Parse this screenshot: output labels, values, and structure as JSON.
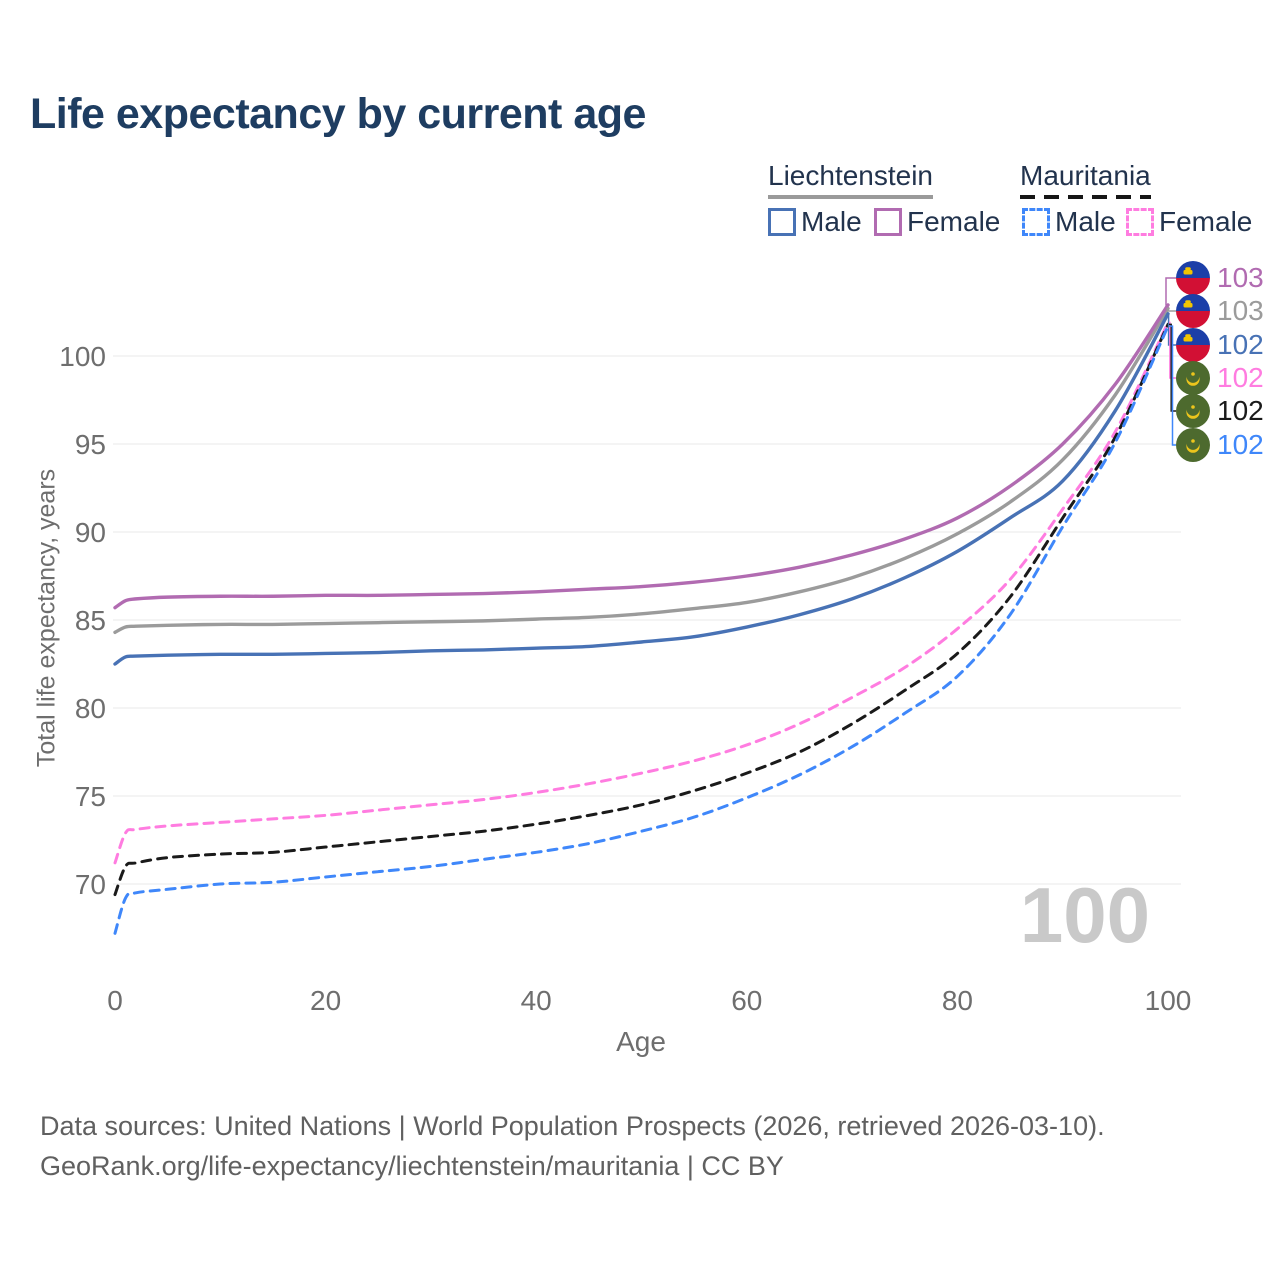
{
  "page": {
    "title": "Life expectancy by current age",
    "watermark": "100"
  },
  "legend": {
    "groups": [
      {
        "label": "Liechtenstein",
        "line_style": "solid",
        "items": [
          {
            "label": "Male",
            "color": "#4872b5",
            "dashed": false
          },
          {
            "label": "Female",
            "color": "#b16bb1",
            "dashed": false
          }
        ]
      },
      {
        "label": "Mauritania",
        "line_style": "dashed",
        "items": [
          {
            "label": "Male",
            "color": "#3f87fa",
            "dashed": true
          },
          {
            "label": "Female",
            "color": "#ff7ce0",
            "dashed": true
          }
        ]
      }
    ]
  },
  "annotations": [
    {
      "flag": "liechtenstein",
      "value": "103",
      "color": "#b16bb1"
    },
    {
      "flag": "liechtenstein",
      "value": "103",
      "color": "#9b9b9b"
    },
    {
      "flag": "liechtenstein",
      "value": "102",
      "color": "#4872b5"
    },
    {
      "flag": "mauritania",
      "value": "102",
      "color": "#ff7ce0"
    },
    {
      "flag": "mauritania",
      "value": "102",
      "color": "#1a1a1a"
    },
    {
      "flag": "mauritania",
      "value": "102",
      "color": "#3f87fa"
    }
  ],
  "footer": {
    "line1": "Data sources: United Nations | World Population Prospects (2026, retrieved 2026-03-10).",
    "line2": "GeoRank.org/life-expectancy/liechtenstein/mauritania | CC BY"
  },
  "chart_data": {
    "type": "line",
    "title": "Life expectancy by current age",
    "xlabel": "Age",
    "ylabel": "Total life expectancy, years",
    "xticks": [
      0,
      20,
      40,
      60,
      80,
      100
    ],
    "yticks": [
      70,
      75,
      80,
      85,
      90,
      95,
      100
    ],
    "xlim": [
      0,
      100
    ],
    "ylim": [
      66,
      104
    ],
    "grid": true,
    "legend_position": "top-right",
    "ages": [
      0,
      1,
      2,
      5,
      10,
      15,
      20,
      25,
      30,
      35,
      40,
      45,
      50,
      55,
      60,
      65,
      70,
      75,
      80,
      85,
      90,
      95,
      100
    ],
    "series": [
      {
        "name": "Liechtenstein Female",
        "color": "#b16bb1",
        "dashed": false,
        "values": [
          85.7,
          86.1,
          86.2,
          86.3,
          86.35,
          86.35,
          86.4,
          86.4,
          86.45,
          86.5,
          86.6,
          86.75,
          86.9,
          87.15,
          87.5,
          88.0,
          88.7,
          89.6,
          90.8,
          92.6,
          95.0,
          98.4,
          102.9
        ]
      },
      {
        "name": "Liechtenstein Both sexes",
        "color": "#9b9b9b",
        "dashed": false,
        "values": [
          84.3,
          84.6,
          84.65,
          84.7,
          84.75,
          84.75,
          84.8,
          84.85,
          84.9,
          84.95,
          85.05,
          85.15,
          85.35,
          85.65,
          86.0,
          86.6,
          87.4,
          88.5,
          89.9,
          91.7,
          94.1,
          97.8,
          102.7
        ]
      },
      {
        "name": "Liechtenstein Male",
        "color": "#4872b5",
        "dashed": false,
        "values": [
          82.5,
          82.9,
          82.95,
          83.0,
          83.05,
          83.05,
          83.1,
          83.15,
          83.25,
          83.3,
          83.4,
          83.5,
          83.75,
          84.05,
          84.6,
          85.3,
          86.2,
          87.4,
          88.9,
          90.8,
          92.9,
          96.9,
          102.4
        ]
      },
      {
        "name": "Mauritania Female",
        "color": "#ff7ce0",
        "dashed": true,
        "values": [
          71.2,
          72.9,
          73.1,
          73.3,
          73.5,
          73.7,
          73.9,
          74.2,
          74.5,
          74.8,
          75.2,
          75.7,
          76.3,
          77.0,
          77.9,
          79.1,
          80.6,
          82.3,
          84.5,
          87.3,
          91.3,
          95.7,
          101.9
        ]
      },
      {
        "name": "Mauritania Both sexes",
        "color": "#1a1a1a",
        "dashed": true,
        "values": [
          69.4,
          71.0,
          71.2,
          71.5,
          71.7,
          71.8,
          72.1,
          72.4,
          72.7,
          73.0,
          73.4,
          73.9,
          74.5,
          75.3,
          76.3,
          77.5,
          79.1,
          81.0,
          83.1,
          86.3,
          90.8,
          95.4,
          101.8
        ]
      },
      {
        "name": "Mauritania Male",
        "color": "#3f87fa",
        "dashed": true,
        "values": [
          67.2,
          69.2,
          69.5,
          69.7,
          70.0,
          70.1,
          70.4,
          70.7,
          71.0,
          71.4,
          71.8,
          72.3,
          73.0,
          73.8,
          74.9,
          76.2,
          77.8,
          79.7,
          81.8,
          85.3,
          90.3,
          95.1,
          101.7
        ]
      }
    ]
  }
}
